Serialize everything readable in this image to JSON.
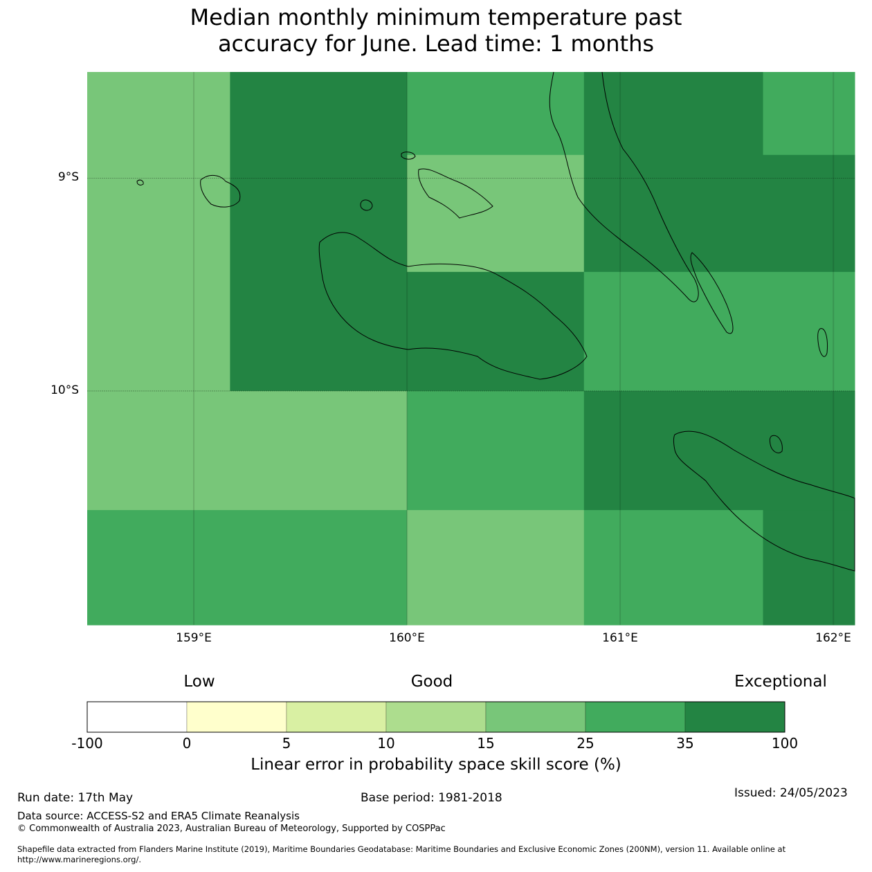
{
  "title": {
    "line1": "Median monthly minimum temperature past",
    "line2": "accuracy for June. Lead time: 1 months"
  },
  "map": {
    "lat_labels": [
      "9°S",
      "10°S"
    ],
    "lon_labels": [
      "159°E",
      "160°E",
      "161°E",
      "162°E"
    ],
    "lon_range": [
      158.5,
      162.1
    ],
    "lat_range": [
      -8.5,
      -11.1
    ],
    "grid": true
  },
  "colors": {
    "c_minus": "#ffffff",
    "c0_5": "#ffffcc",
    "c5_10": "#d9f0a3",
    "c10_15": "#addd8e",
    "c15_25": "#78c679",
    "c25_35": "#41ab5d",
    "c35_100": "#238443"
  },
  "chart_data": {
    "type": "heatmap",
    "metric": "Linear error in probability space skill score (%)",
    "cells": [
      {
        "lon": [
          158.5,
          159.17
        ],
        "lat": [
          -8.5,
          -10.0
        ],
        "bin": "15-25"
      },
      {
        "lon": [
          159.17,
          160.0
        ],
        "lat": [
          -8.5,
          -10.0
        ],
        "bin": "35-100"
      },
      {
        "lon": [
          160.0,
          160.83
        ],
        "lat": [
          -8.5,
          -8.89
        ],
        "bin": "25-35"
      },
      {
        "lon": [
          160.0,
          160.83
        ],
        "lat": [
          -8.89,
          -9.44
        ],
        "bin": "15-25"
      },
      {
        "lon": [
          160.0,
          160.83
        ],
        "lat": [
          -9.44,
          -10.0
        ],
        "bin": "35-100"
      },
      {
        "lon": [
          160.83,
          161.67
        ],
        "lat": [
          -8.5,
          -9.44
        ],
        "bin": "35-100"
      },
      {
        "lon": [
          161.67,
          162.1
        ],
        "lat": [
          -8.5,
          -8.89
        ],
        "bin": "25-35"
      },
      {
        "lon": [
          161.67,
          162.1
        ],
        "lat": [
          -8.89,
          -9.44
        ],
        "bin": "35-100"
      },
      {
        "lon": [
          160.83,
          162.1
        ],
        "lat": [
          -9.44,
          -10.0
        ],
        "bin": "25-35"
      },
      {
        "lon": [
          158.5,
          160.0
        ],
        "lat": [
          -10.0,
          -10.56
        ],
        "bin": "15-25"
      },
      {
        "lon": [
          160.0,
          160.83
        ],
        "lat": [
          -10.0,
          -10.56
        ],
        "bin": "25-35"
      },
      {
        "lon": [
          160.83,
          162.1
        ],
        "lat": [
          -10.0,
          -10.56
        ],
        "bin": "35-100"
      },
      {
        "lon": [
          158.5,
          160.0
        ],
        "lat": [
          -10.56,
          -11.1
        ],
        "bin": "25-35"
      },
      {
        "lon": [
          160.0,
          160.83
        ],
        "lat": [
          -10.56,
          -11.1
        ],
        "bin": "15-25"
      },
      {
        "lon": [
          160.83,
          161.67
        ],
        "lat": [
          -10.56,
          -11.1
        ],
        "bin": "25-35"
      },
      {
        "lon": [
          161.67,
          162.1
        ],
        "lat": [
          -10.56,
          -11.1
        ],
        "bin": "35-100"
      }
    ]
  },
  "colorbar": {
    "categories": [
      "Low",
      "Good",
      "Exceptional"
    ],
    "ticks": [
      "-100",
      "0",
      "5",
      "10",
      "15",
      "25",
      "35",
      "100"
    ],
    "bins": [
      {
        "range": "-100-0",
        "color": "#ffffff"
      },
      {
        "range": "0-5",
        "color": "#ffffcc"
      },
      {
        "range": "5-10",
        "color": "#d9f0a3"
      },
      {
        "range": "10-15",
        "color": "#addd8e"
      },
      {
        "range": "15-25",
        "color": "#78c679"
      },
      {
        "range": "25-35",
        "color": "#41ab5d"
      },
      {
        "range": "35-100",
        "color": "#238443"
      }
    ],
    "label": "Linear error in probability space skill score (%)"
  },
  "footer": {
    "run_date": "Run date: 17th May",
    "base_period": "Base period: 1981-2018",
    "issued": "Issued: 24/05/2023",
    "data_source": "Data source: ACCESS-S2 and ERA5 Climate Reanalysis",
    "copyright": "© Commonwealth of Australia 2023, Australian Bureau of Meteorology, Supported by COSPPac",
    "shapefile_line1": "Shapefile data extracted from Flanders Marine Institute (2019), Maritime Boundaries Geodatabase: Maritime Boundaries and Exclusive Economic Zones (200NM), version 11. Available online at",
    "shapefile_line2": "http://www.marineregions.org/."
  }
}
